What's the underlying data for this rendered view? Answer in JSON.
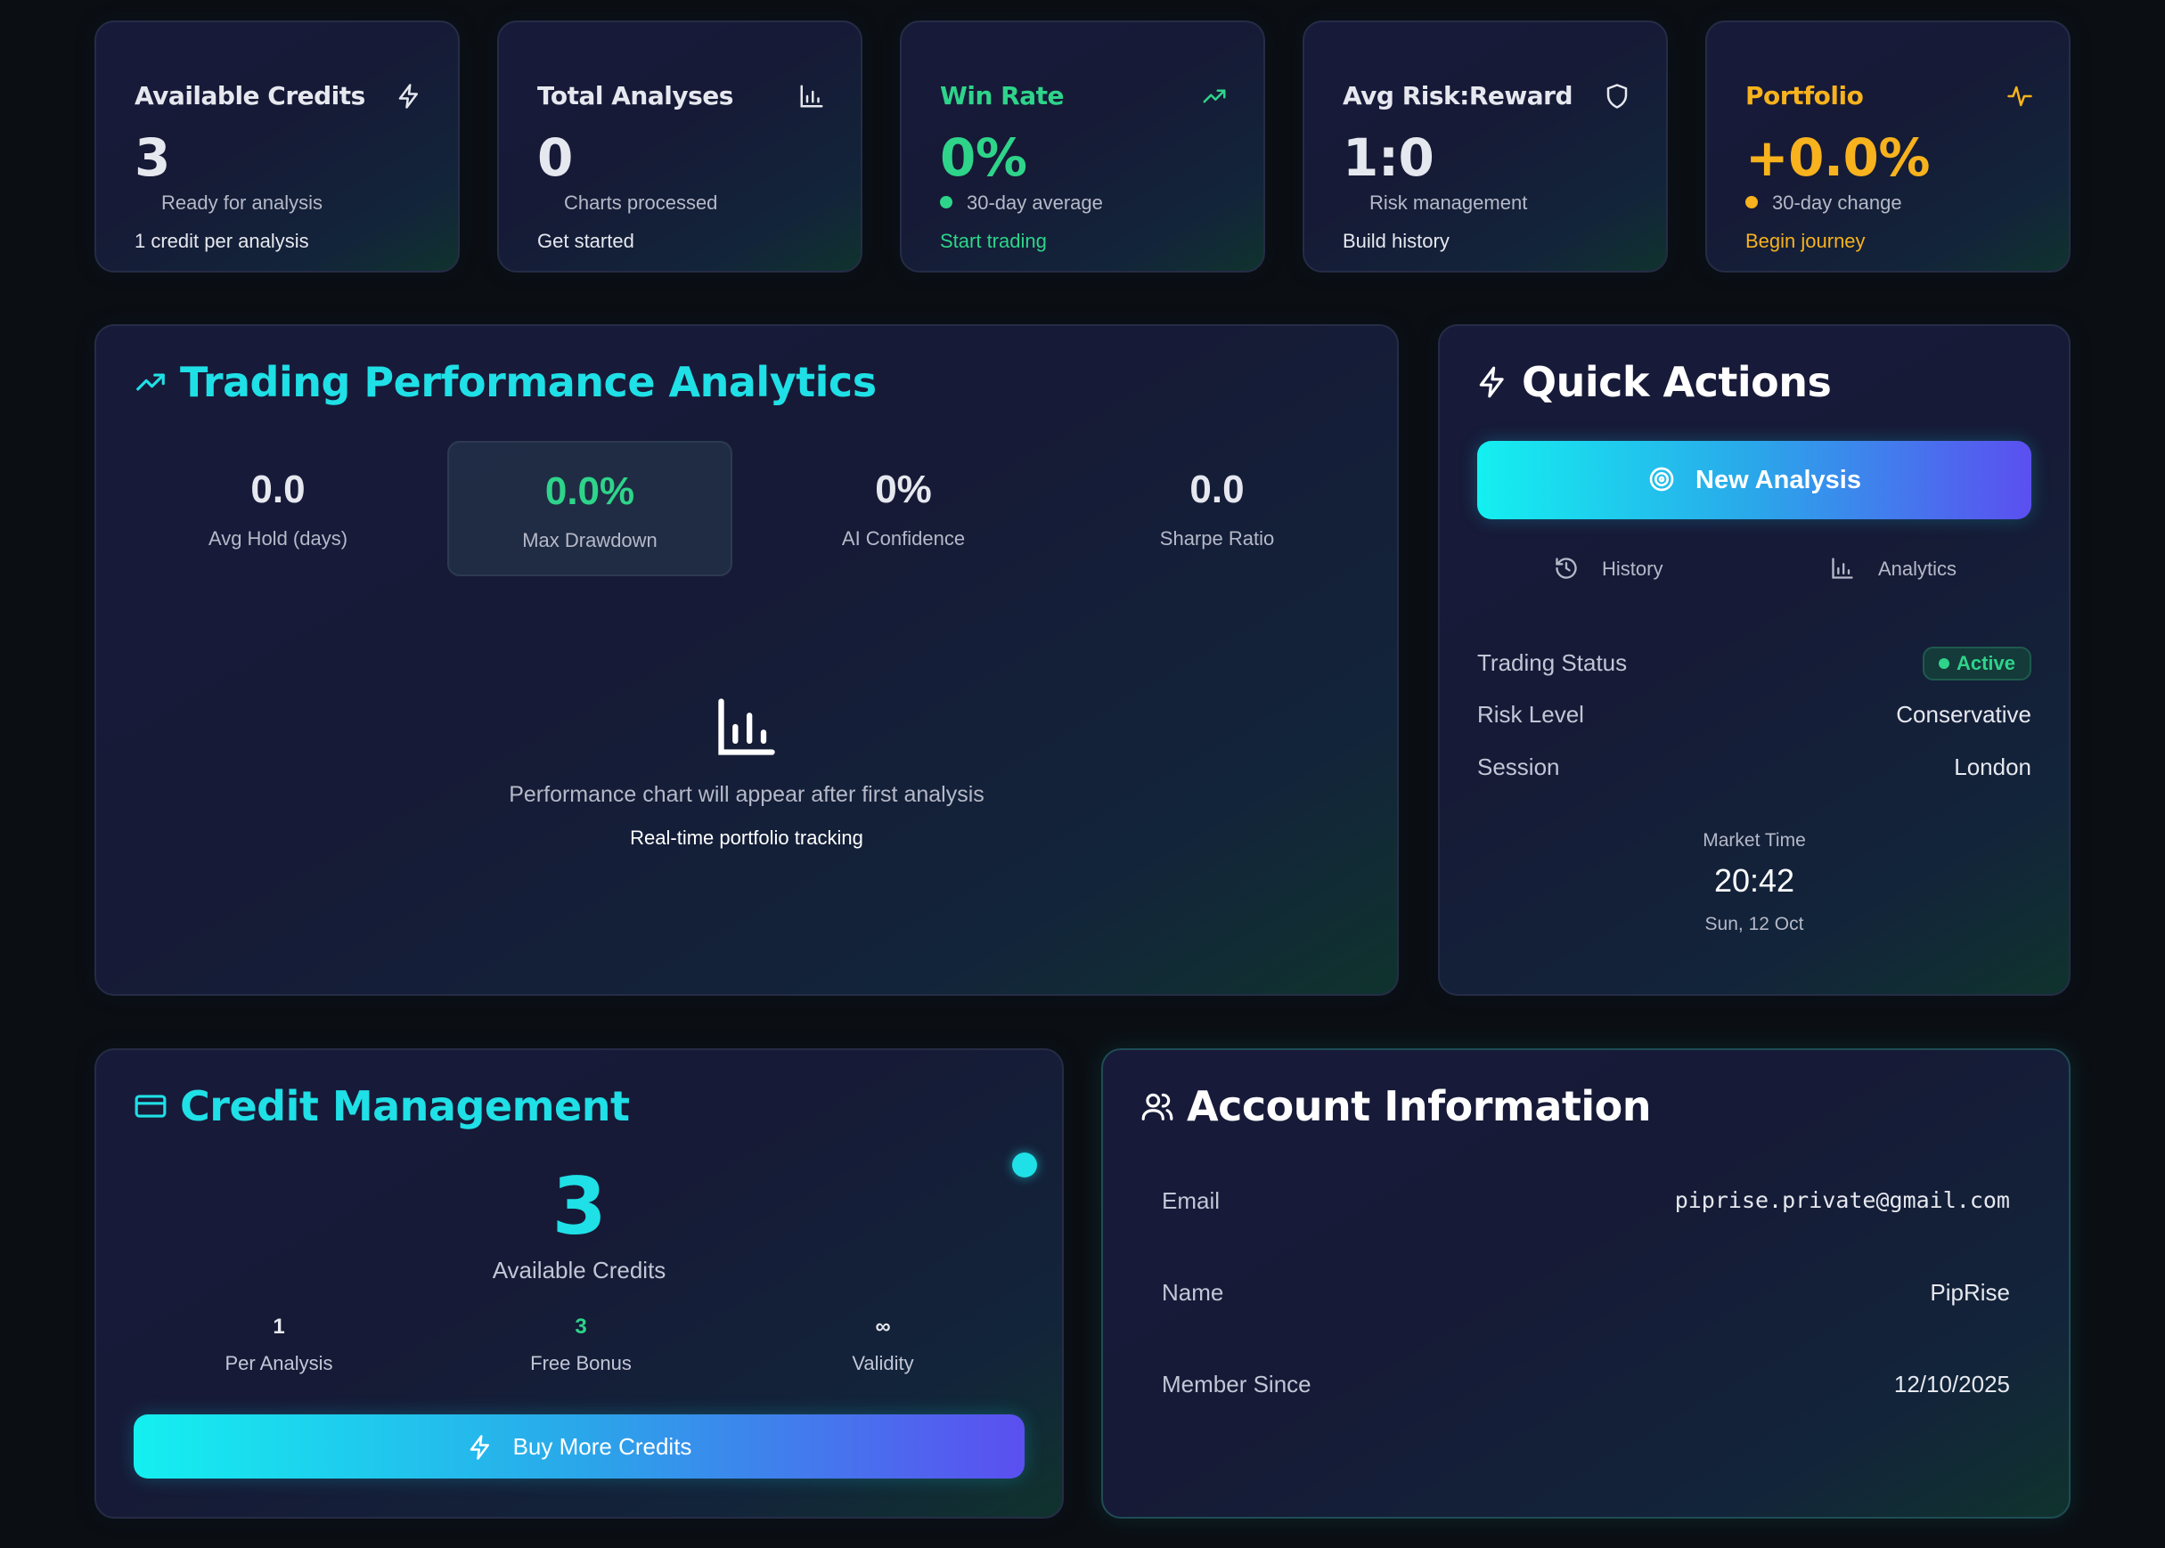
{
  "stats": [
    {
      "title": "Available Credits",
      "value": "3",
      "subtitle": "Ready for analysis",
      "footer": "1 credit per analysis",
      "icon": "lightning-icon",
      "accent": "#ffffff"
    },
    {
      "title": "Total Analyses",
      "value": "0",
      "subtitle": "Charts processed",
      "footer": "Get started",
      "icon": "bar-chart-icon",
      "accent": "#ffffff"
    },
    {
      "title": "Win Rate",
      "value": "0%",
      "subtitle": "30-day average",
      "footer": "Start trading",
      "icon": "trending-up-icon",
      "accent": "#2ed48a"
    },
    {
      "title": "Avg Risk:Reward",
      "value": "1:0",
      "subtitle": "Risk management",
      "footer": "Build history",
      "icon": "shield-icon",
      "accent": "#ffffff"
    },
    {
      "title": "Portfolio",
      "value": "+0.0%",
      "subtitle": "30-day change",
      "footer": "Begin journey",
      "icon": "activity-icon",
      "accent": "#f7b21d"
    }
  ],
  "performance": {
    "title": "Trading Performance Analytics",
    "metrics": [
      {
        "value": "0.0",
        "label": "Avg Hold (days)"
      },
      {
        "value": "0.0%",
        "label": "Max Drawdown"
      },
      {
        "value": "0%",
        "label": "AI Confidence"
      },
      {
        "value": "0.0",
        "label": "Sharpe Ratio"
      }
    ],
    "empty_message": "Performance chart will appear after first analysis",
    "empty_sub": "Real-time portfolio tracking"
  },
  "quick_actions": {
    "title": "Quick Actions",
    "new_analysis": "New Analysis",
    "history": "History",
    "analytics": "Analytics",
    "status_label": "Trading Status",
    "status_value": "Active",
    "risk_label": "Risk Level",
    "risk_value": "Conservative",
    "session_label": "Session",
    "session_value": "London",
    "market_time_label": "Market Time",
    "market_time": "20:42",
    "market_date": "Sun, 12 Oct"
  },
  "credits": {
    "title": "Credit Management",
    "value": "3",
    "label": "Available Credits",
    "per_analysis_value": "1",
    "per_analysis_label": "Per Analysis",
    "bonus_value": "3",
    "bonus_label": "Free Bonus",
    "validity_value": "∞",
    "validity_label": "Validity",
    "buy_button": "Buy More Credits"
  },
  "account": {
    "title": "Account Information",
    "email_label": "Email",
    "email_value": "piprise.private@gmail.com",
    "name_label": "Name",
    "name_value": "PipRise",
    "member_label": "Member Since",
    "member_value": "12/10/2025"
  },
  "colors": {
    "accent_cyan": "#1fe0e6",
    "accent_green": "#2ed48a",
    "accent_orange": "#f7b21d"
  }
}
